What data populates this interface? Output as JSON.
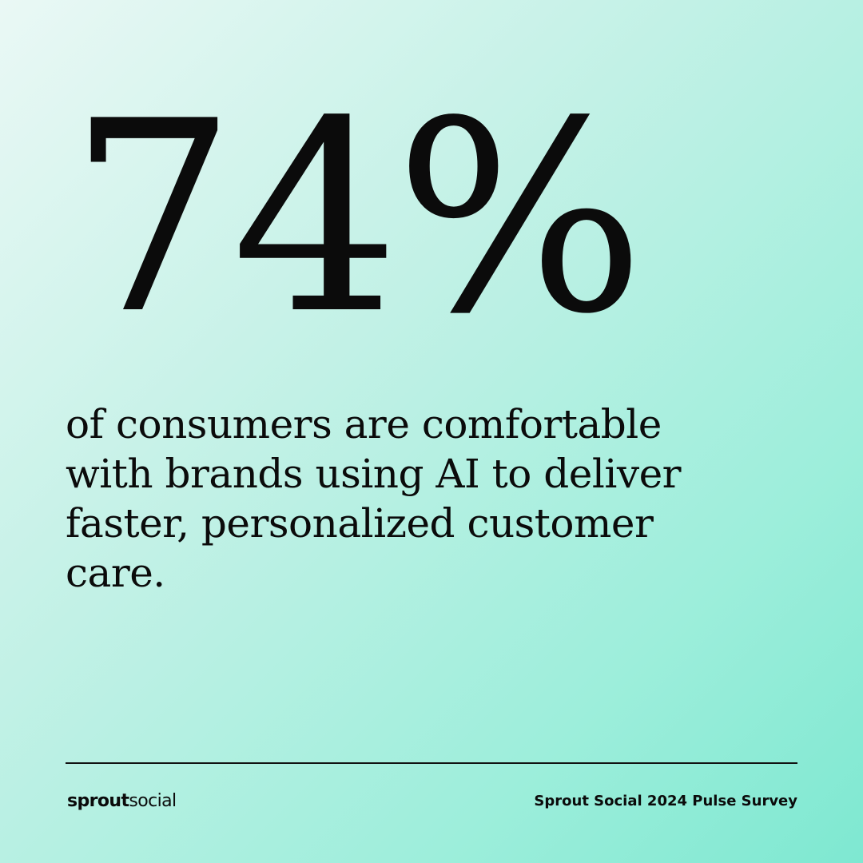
{
  "stat": "74%",
  "description": [
    "of consumers are comfortable",
    "with brands using AI to deliver",
    "faster, personalized customer",
    "care."
  ],
  "logo": {
    "bold": "sprout",
    "light": "social"
  },
  "source": "Sprout Social 2024 Pulse Survey"
}
